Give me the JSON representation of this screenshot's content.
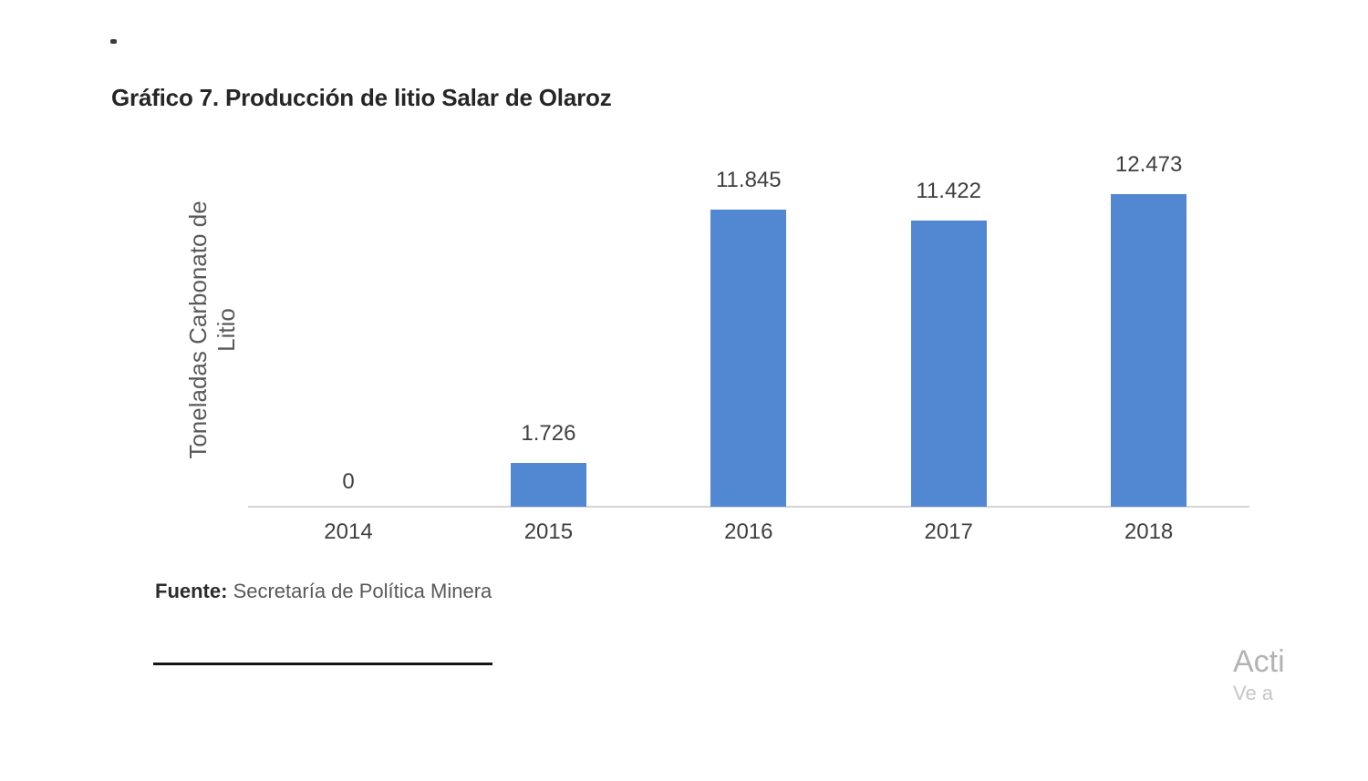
{
  "document": {
    "figure_title": "Gráfico 7. Producción de litio Salar de Olaroz",
    "source": {
      "label": "Fuente:",
      "text": " Secretaría de Política Minera"
    }
  },
  "chart_data": {
    "type": "bar",
    "title": "Gráfico 7. Producción de litio Salar de Olaroz",
    "categories": [
      "2014",
      "2015",
      "2016",
      "2017",
      "2018"
    ],
    "values": [
      0,
      1726,
      11845,
      11422,
      12473
    ],
    "data_labels": [
      "0",
      "1.726",
      "11.845",
      "11.422",
      "12.473"
    ],
    "xlabel": "",
    "ylabel": "Toneladas Carbonato de Litio",
    "ylabel_lines": [
      "Toneladas Carbonato de",
      "Litio"
    ],
    "ylim": [
      0,
      13000
    ],
    "grid": false,
    "legend_position": "none",
    "data_labels_shown": true,
    "bar_color": "#5288d2",
    "axis_line_color": "#d4d4d4",
    "source_note": "Fuente: Secretaría de Política Minera"
  },
  "watermark": {
    "line1": "Acti",
    "line2": "Ve a"
  }
}
